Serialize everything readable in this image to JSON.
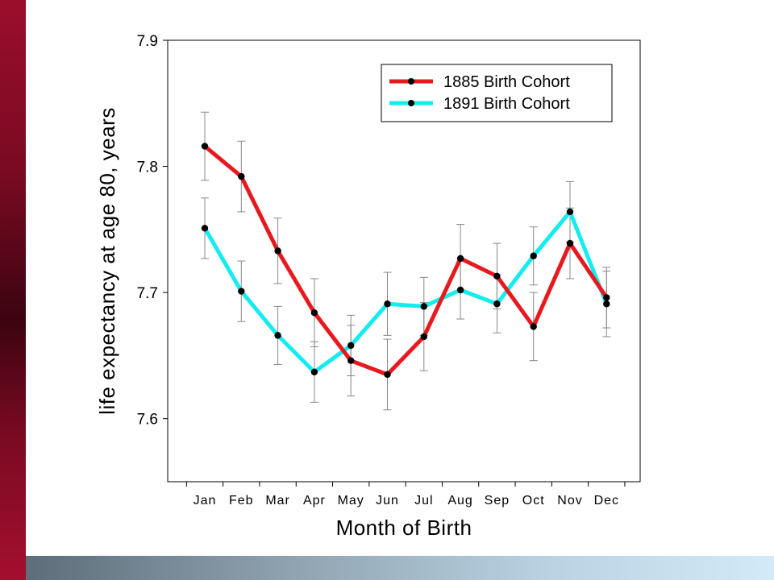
{
  "chart_data": {
    "type": "line",
    "xlabel": "Month of Birth",
    "ylabel": "life expectancy at age 80, years",
    "ylim": [
      7.55,
      7.9
    ],
    "yticks": [
      7.6,
      7.7,
      7.8,
      7.9
    ],
    "ytick_labels": [
      "7.6",
      "7.7",
      "7.8",
      "7.9"
    ],
    "categories": [
      "Jan",
      "Feb",
      "Mar",
      "Apr",
      "May",
      "Jun",
      "Jul",
      "Aug",
      "Sep",
      "Oct",
      "Nov",
      "Dec"
    ],
    "legend_position": "top-right",
    "series": [
      {
        "name": "1885 Birth Cohort",
        "color": "#e8191e",
        "values": [
          7.816,
          7.792,
          7.733,
          7.684,
          7.646,
          7.635,
          7.665,
          7.727,
          7.713,
          7.673,
          7.739,
          7.696
        ],
        "error": [
          0.027,
          0.028,
          0.026,
          0.027,
          0.028,
          0.028,
          0.027,
          0.027,
          0.026,
          0.027,
          0.028,
          0.024
        ]
      },
      {
        "name": "1891 Birth Cohort",
        "color": "#14ecf0",
        "values": [
          7.751,
          7.701,
          7.666,
          7.637,
          7.658,
          7.691,
          7.689,
          7.702,
          7.691,
          7.729,
          7.764,
          7.691
        ],
        "error": [
          0.024,
          0.024,
          0.023,
          0.024,
          0.024,
          0.025,
          0.023,
          0.023,
          0.023,
          0.023,
          0.024,
          0.026
        ]
      }
    ]
  }
}
